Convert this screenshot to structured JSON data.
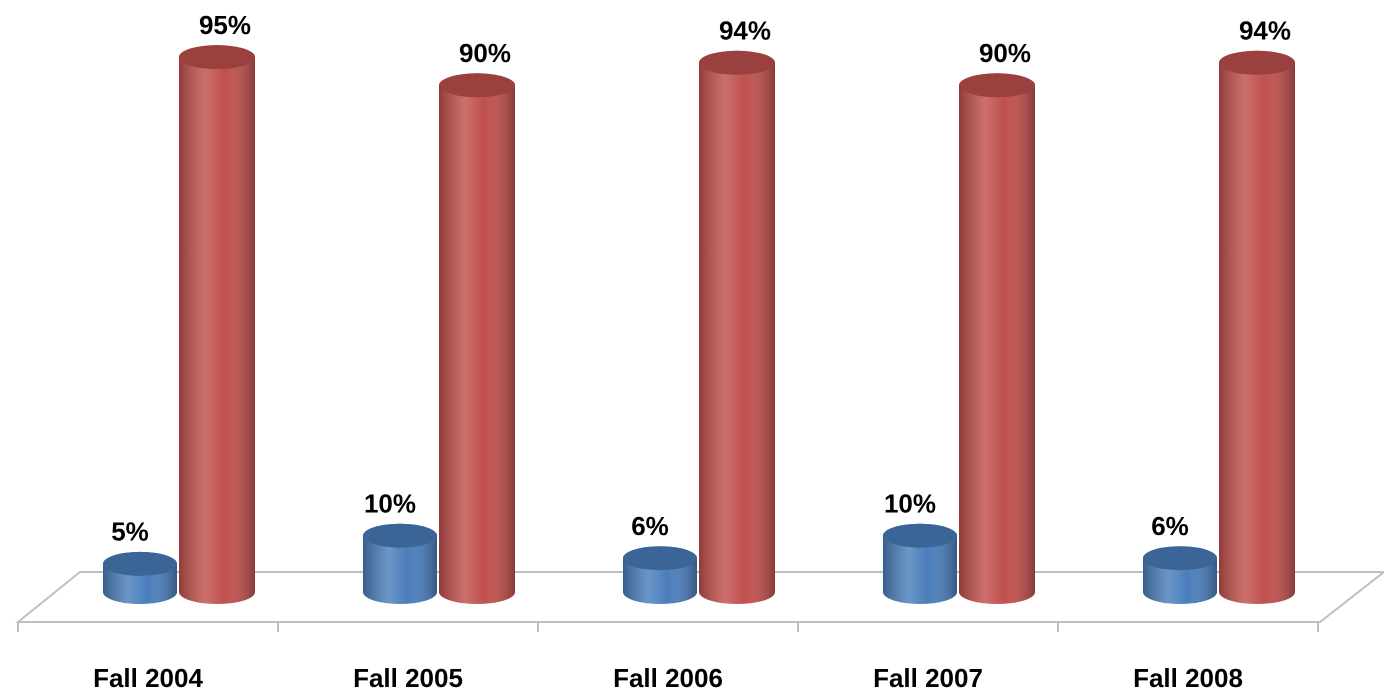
{
  "chart_data": {
    "type": "bar3d",
    "categories": [
      "Fall 2004",
      "Fall 2005",
      "Fall 2006",
      "Fall 2007",
      "Fall 2008"
    ],
    "series": [
      {
        "color": "#4a7ebb",
        "values": [
          5,
          10,
          6,
          10,
          6
        ],
        "value_labels": [
          "5%",
          "10%",
          "6%",
          "10%",
          "6%"
        ]
      },
      {
        "color": "#c0504d",
        "values": [
          95,
          90,
          94,
          90,
          94
        ],
        "value_labels": [
          "95%",
          "90%",
          "94%",
          "90%",
          "94%"
        ]
      }
    ]
  }
}
